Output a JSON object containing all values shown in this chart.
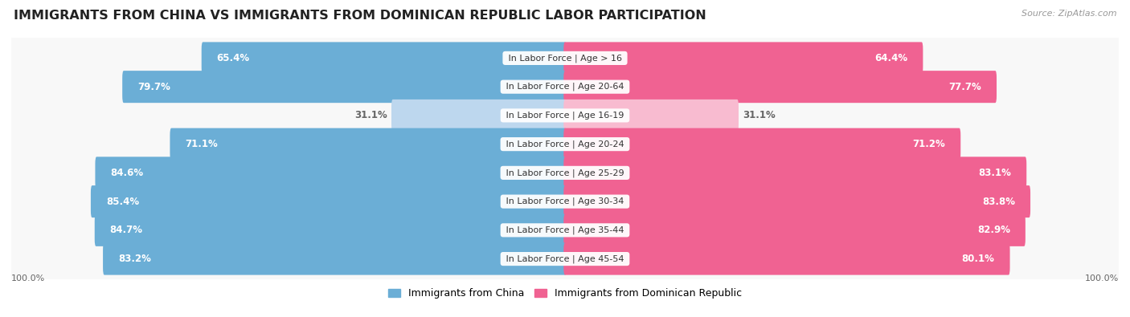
{
  "title": "IMMIGRANTS FROM CHINA VS IMMIGRANTS FROM DOMINICAN REPUBLIC LABOR PARTICIPATION",
  "source": "Source: ZipAtlas.com",
  "categories": [
    "In Labor Force | Age > 16",
    "In Labor Force | Age 20-64",
    "In Labor Force | Age 16-19",
    "In Labor Force | Age 20-24",
    "In Labor Force | Age 25-29",
    "In Labor Force | Age 30-34",
    "In Labor Force | Age 35-44",
    "In Labor Force | Age 45-54"
  ],
  "china_values": [
    65.4,
    79.7,
    31.1,
    71.1,
    84.6,
    85.4,
    84.7,
    83.2
  ],
  "dr_values": [
    64.4,
    77.7,
    31.1,
    71.2,
    83.1,
    83.8,
    82.9,
    80.1
  ],
  "china_color": "#6baed6",
  "china_color_light": "#bdd7ee",
  "dr_color": "#f06292",
  "dr_color_light": "#f8bbd0",
  "row_bg_color": "#ebebeb",
  "row_inner_bg": "#f8f8f8",
  "label_color_white": "#ffffff",
  "label_color_dark": "#666666",
  "max_value": 100.0,
  "legend_china": "Immigrants from China",
  "legend_dr": "Immigrants from Dominican Republic",
  "title_fontsize": 11.5,
  "label_fontsize": 8.5,
  "category_fontsize": 8.0,
  "legend_fontsize": 9,
  "source_fontsize": 8
}
